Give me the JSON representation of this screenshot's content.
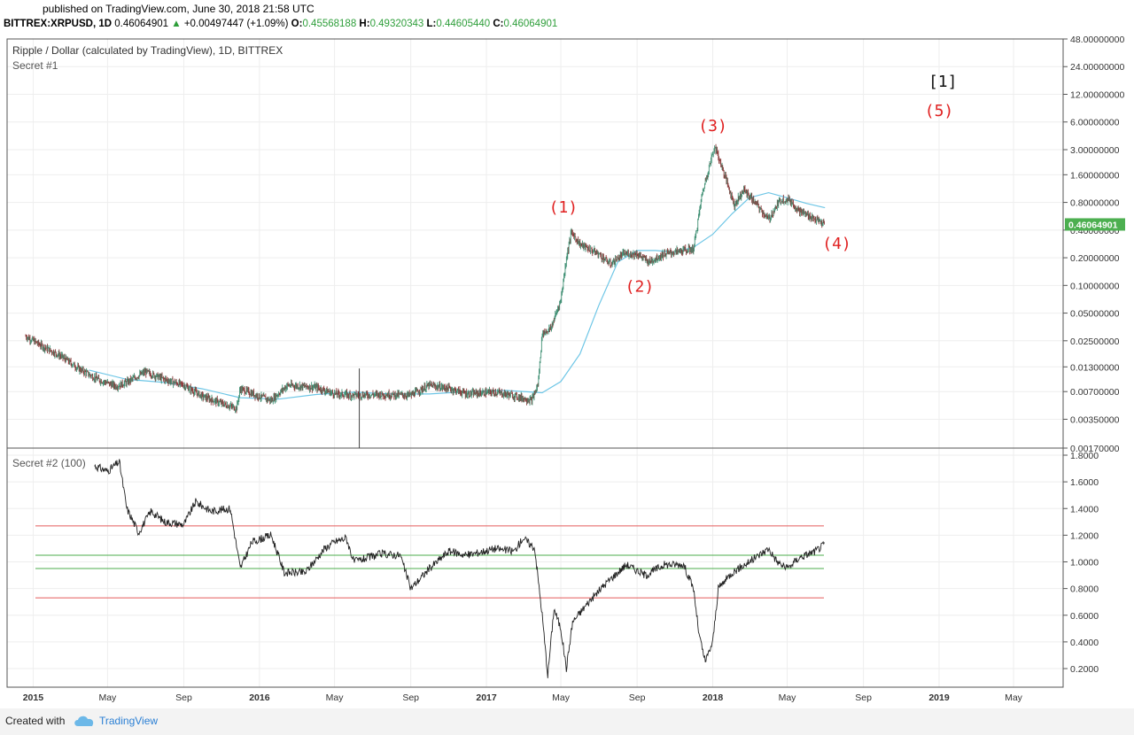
{
  "header": {
    "published": "published on TradingView.com, June 30, 2018 21:58 UTC",
    "symbol": "BITTREX:XRPUSD, 1D",
    "last": "0.46064901",
    "change": "+0.00497447 (+1.09%)",
    "open_label": "O:",
    "open": "0.45568188",
    "high_label": "H:",
    "high": "0.49320343",
    "low_label": "L:",
    "low": "0.44605440",
    "close_label": "C:",
    "close": "0.46064901"
  },
  "footer": {
    "created_with": "Created with",
    "brand": "TradingView"
  },
  "colors": {
    "candle_up": "#3f8f73",
    "candle_down": "#8a3b3b",
    "ma_line": "#6ec6e6",
    "wave_label": "#e02020",
    "red_line": "#e45b5b",
    "green_line": "#4cae4c",
    "price_badge": "#4caf50",
    "grid": "#eeeeee"
  },
  "chart_data": [
    {
      "type": "line",
      "title": "Ripple / Dollar (calculated by TradingView), 1D, BITTREX",
      "subtitle": "Secret #1",
      "scale": "log",
      "ylim": [
        0.0017,
        48
      ],
      "yticks": [
        "48.00000000",
        "24.00000000",
        "12.00000000",
        "6.00000000",
        "3.00000000",
        "1.60000000",
        "0.80000000",
        "0.40000000",
        "0.20000000",
        "0.10000000",
        "0.05000000",
        "0.02500000",
        "0.01300000",
        "0.00700000",
        "0.00350000",
        "0.00170000"
      ],
      "ytick_values": [
        48,
        24,
        12,
        6,
        3,
        1.6,
        0.8,
        0.4,
        0.2,
        0.1,
        0.05,
        0.025,
        0.013,
        0.007,
        0.0035,
        0.0017
      ],
      "current_price_badge": "0.46064901",
      "current_price": 0.46064901,
      "xticks": [
        "2015",
        "May",
        "Sep",
        "2016",
        "May",
        "Sep",
        "2017",
        "May",
        "Sep",
        "2018",
        "May",
        "Sep",
        "2019",
        "May"
      ],
      "xtick_values": [
        "2015-01",
        "2015-05",
        "2015-09",
        "2016-01",
        "2016-05",
        "2016-09",
        "2017-01",
        "2017-05",
        "2017-09",
        "2018-01",
        "2018-05",
        "2018-09",
        "2019-01",
        "2019-05"
      ],
      "series": [
        {
          "kind": "price",
          "points": [
            [
              "2014-12-20",
              0.028
            ],
            [
              "2015-01-15",
              0.022
            ],
            [
              "2015-02-15",
              0.017
            ],
            [
              "2015-03-15",
              0.0125
            ],
            [
              "2015-04-15",
              0.0095
            ],
            [
              "2015-05-15",
              0.008
            ],
            [
              "2015-06-01",
              0.0088
            ],
            [
              "2015-07-01",
              0.0115
            ],
            [
              "2015-08-01",
              0.0095
            ],
            [
              "2015-09-01",
              0.0082
            ],
            [
              "2015-10-01",
              0.0062
            ],
            [
              "2015-11-01",
              0.0052
            ],
            [
              "2015-11-25",
              0.0046
            ],
            [
              "2015-12-01",
              0.0075
            ],
            [
              "2016-01-01",
              0.0062
            ],
            [
              "2016-01-20",
              0.0056
            ],
            [
              "2016-02-15",
              0.0082
            ],
            [
              "2016-04-01",
              0.0078
            ],
            [
              "2016-05-01",
              0.0066
            ],
            [
              "2016-06-01",
              0.0064
            ],
            [
              "2016-07-15",
              0.0065
            ],
            [
              "2016-09-01",
              0.0064
            ],
            [
              "2016-10-01",
              0.0082
            ],
            [
              "2016-11-01",
              0.0076
            ],
            [
              "2016-12-01",
              0.0066
            ],
            [
              "2017-01-15",
              0.0069
            ],
            [
              "2017-02-15",
              0.0063
            ],
            [
              "2017-03-15",
              0.0056
            ],
            [
              "2017-03-25",
              0.0082
            ],
            [
              "2017-04-01",
              0.03
            ],
            [
              "2017-04-15",
              0.034
            ],
            [
              "2017-05-01",
              0.07
            ],
            [
              "2017-05-10",
              0.2
            ],
            [
              "2017-05-18",
              0.38
            ],
            [
              "2017-06-01",
              0.28
            ],
            [
              "2017-07-01",
              0.22
            ],
            [
              "2017-07-20",
              0.17
            ],
            [
              "2017-08-10",
              0.22
            ],
            [
              "2017-09-01",
              0.22
            ],
            [
              "2017-09-20",
              0.18
            ],
            [
              "2017-10-15",
              0.22
            ],
            [
              "2017-11-15",
              0.24
            ],
            [
              "2017-12-01",
              0.25
            ],
            [
              "2017-12-15",
              1.0
            ],
            [
              "2018-01-04",
              3.3
            ],
            [
              "2018-01-20",
              1.6
            ],
            [
              "2018-02-05",
              0.75
            ],
            [
              "2018-02-20",
              1.1
            ],
            [
              "2018-03-10",
              0.8
            ],
            [
              "2018-04-01",
              0.52
            ],
            [
              "2018-04-20",
              0.85
            ],
            [
              "2018-05-05",
              0.85
            ],
            [
              "2018-05-20",
              0.65
            ],
            [
              "2018-06-10",
              0.55
            ],
            [
              "2018-06-30",
              0.46
            ]
          ]
        },
        {
          "kind": "moving-average",
          "points": [
            [
              "2015-04-01",
              0.012
            ],
            [
              "2015-06-01",
              0.0095
            ],
            [
              "2015-08-01",
              0.0088
            ],
            [
              "2015-10-01",
              0.0075
            ],
            [
              "2015-12-01",
              0.006
            ],
            [
              "2016-02-01",
              0.0058
            ],
            [
              "2016-04-01",
              0.0065
            ],
            [
              "2016-06-01",
              0.0069
            ],
            [
              "2016-08-01",
              0.0066
            ],
            [
              "2016-10-01",
              0.0066
            ],
            [
              "2016-12-01",
              0.007
            ],
            [
              "2017-02-01",
              0.0072
            ],
            [
              "2017-04-01",
              0.0068
            ],
            [
              "2017-05-01",
              0.009
            ],
            [
              "2017-06-01",
              0.018
            ],
            [
              "2017-07-01",
              0.06
            ],
            [
              "2017-08-01",
              0.18
            ],
            [
              "2017-09-01",
              0.24
            ],
            [
              "2017-10-01",
              0.24
            ],
            [
              "2017-11-01",
              0.23
            ],
            [
              "2017-12-01",
              0.26
            ],
            [
              "2018-01-01",
              0.36
            ],
            [
              "2018-02-01",
              0.6
            ],
            [
              "2018-03-01",
              0.9
            ],
            [
              "2018-04-01",
              1.02
            ],
            [
              "2018-05-01",
              0.9
            ],
            [
              "2018-06-01",
              0.78
            ],
            [
              "2018-07-01",
              0.7
            ]
          ]
        }
      ],
      "annotations": [
        {
          "text": "(1)",
          "x": "2017-05-05",
          "y": 0.62
        },
        {
          "text": "(2)",
          "x": "2017-09-05",
          "y": 0.085
        },
        {
          "text": "(3)",
          "x": "2018-01-01",
          "y": 4.8
        },
        {
          "text": "(4)",
          "x": "2018-07-20",
          "y": 0.25
        },
        {
          "text": "(5)",
          "x": "2019-01-01",
          "y": 7.0
        },
        {
          "text": "[1]",
          "x": "2019-01-07",
          "y": 14.5
        }
      ]
    },
    {
      "type": "line",
      "subtitle": "Secret #2 (100)",
      "ylim": [
        0.1,
        1.8
      ],
      "yticks": [
        "1.8000",
        "1.6000",
        "1.4000",
        "1.2000",
        "1.0000",
        "0.8000",
        "0.6000",
        "0.4000",
        "0.2000"
      ],
      "ytick_values": [
        1.8,
        1.6,
        1.4,
        1.2,
        1.0,
        0.8,
        0.6,
        0.4,
        0.2
      ],
      "hlines": [
        {
          "y": 1.27,
          "color": "red"
        },
        {
          "y": 1.05,
          "color": "green"
        },
        {
          "y": 0.95,
          "color": "green"
        },
        {
          "y": 0.73,
          "color": "red"
        }
      ],
      "series": [
        {
          "kind": "oscillator",
          "points": [
            [
              "2015-04-10",
              1.72
            ],
            [
              "2015-05-01",
              1.68
            ],
            [
              "2015-05-20",
              1.75
            ],
            [
              "2015-06-01",
              1.4
            ],
            [
              "2015-06-20",
              1.22
            ],
            [
              "2015-07-10",
              1.38
            ],
            [
              "2015-08-01",
              1.3
            ],
            [
              "2015-09-01",
              1.28
            ],
            [
              "2015-09-20",
              1.45
            ],
            [
              "2015-10-15",
              1.38
            ],
            [
              "2015-11-15",
              1.4
            ],
            [
              "2015-12-01",
              0.95
            ],
            [
              "2015-12-20",
              1.15
            ],
            [
              "2016-01-20",
              1.2
            ],
            [
              "2016-02-10",
              0.92
            ],
            [
              "2016-03-15",
              0.92
            ],
            [
              "2016-04-15",
              1.1
            ],
            [
              "2016-05-01",
              1.15
            ],
            [
              "2016-05-20",
              1.18
            ],
            [
              "2016-06-01",
              1.0
            ],
            [
              "2016-07-15",
              1.06
            ],
            [
              "2016-08-15",
              1.05
            ],
            [
              "2016-09-01",
              0.8
            ],
            [
              "2016-10-01",
              0.95
            ],
            [
              "2016-11-01",
              1.08
            ],
            [
              "2016-12-01",
              1.05
            ],
            [
              "2017-01-15",
              1.1
            ],
            [
              "2017-02-15",
              1.08
            ],
            [
              "2017-03-01",
              1.18
            ],
            [
              "2017-03-20",
              1.1
            ],
            [
              "2017-04-01",
              0.6
            ],
            [
              "2017-04-10",
              0.15
            ],
            [
              "2017-04-20",
              0.65
            ],
            [
              "2017-05-01",
              0.5
            ],
            [
              "2017-05-10",
              0.2
            ],
            [
              "2017-05-20",
              0.55
            ],
            [
              "2017-06-15",
              0.7
            ],
            [
              "2017-07-15",
              0.85
            ],
            [
              "2017-08-15",
              0.98
            ],
            [
              "2017-09-15",
              0.9
            ],
            [
              "2017-10-15",
              0.98
            ],
            [
              "2017-11-15",
              0.98
            ],
            [
              "2017-12-01",
              0.8
            ],
            [
              "2017-12-10",
              0.45
            ],
            [
              "2017-12-20",
              0.25
            ],
            [
              "2018-01-01",
              0.4
            ],
            [
              "2018-01-10",
              0.8
            ],
            [
              "2018-02-01",
              0.92
            ],
            [
              "2018-03-01",
              1.0
            ],
            [
              "2018-04-01",
              1.1
            ],
            [
              "2018-04-15",
              1.0
            ],
            [
              "2018-05-01",
              0.95
            ],
            [
              "2018-05-20",
              1.03
            ],
            [
              "2018-06-15",
              1.08
            ],
            [
              "2018-06-30",
              1.13
            ]
          ]
        }
      ]
    }
  ]
}
